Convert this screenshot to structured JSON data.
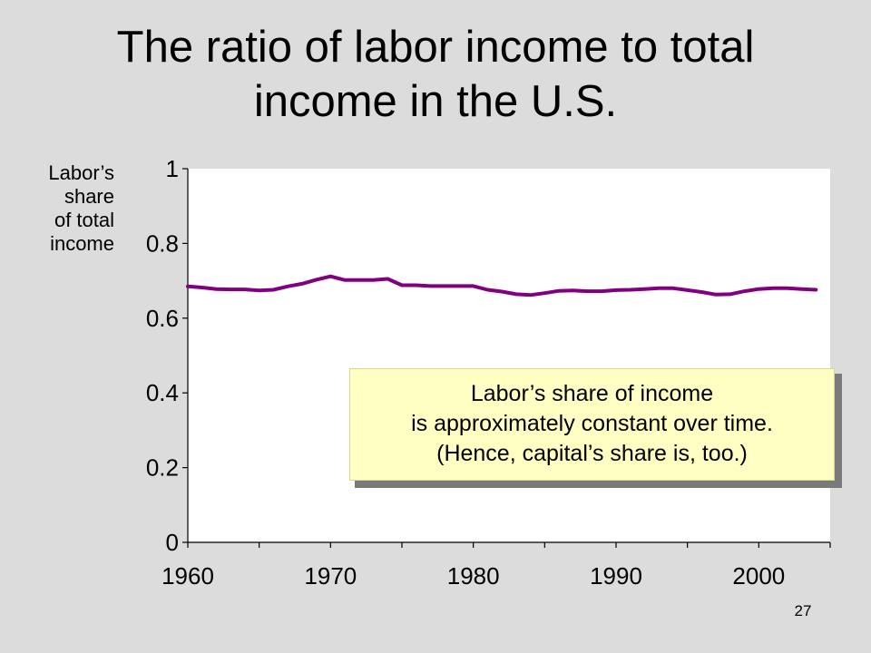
{
  "title_lines": [
    "The ratio of labor income to total",
    "income in the U.S."
  ],
  "ylabel_lines": [
    "Labor’s",
    "share",
    "of total",
    "income"
  ],
  "callout_lines": [
    "Labor’s share of income",
    "is approximately constant over time.",
    "(Hence, capital’s share is, too.)"
  ],
  "page_number": "27",
  "colors": {
    "line": "#800080",
    "plot_bg": "#ffffff",
    "callout_bg": "#ffffc4",
    "page_bg": "#dcdcdc"
  },
  "chart_data": {
    "type": "line",
    "title": "The ratio of labor income to total income in the U.S.",
    "ylabel": "Labor’s share of total income",
    "xlabel": "",
    "xlim": [
      1960,
      2005
    ],
    "ylim": [
      0,
      1
    ],
    "xticks": [
      1960,
      1970,
      1980,
      1990,
      2000
    ],
    "yticks": [
      0,
      0.2,
      0.4,
      0.6,
      0.8,
      1
    ],
    "ytick_labels": [
      "0",
      "0.2",
      "0.4",
      "0.6",
      "0.8",
      "1"
    ],
    "grid": false,
    "x": [
      1960,
      1961,
      1962,
      1963,
      1964,
      1965,
      1966,
      1967,
      1968,
      1969,
      1970,
      1971,
      1972,
      1973,
      1974,
      1975,
      1976,
      1977,
      1978,
      1979,
      1980,
      1981,
      1982,
      1983,
      1984,
      1985,
      1986,
      1987,
      1988,
      1989,
      1990,
      1991,
      1992,
      1993,
      1994,
      1995,
      1996,
      1997,
      1998,
      1999,
      2000,
      2001,
      2002,
      2003,
      2004
    ],
    "series": [
      {
        "values": [
          0.685,
          0.682,
          0.678,
          0.677,
          0.677,
          0.674,
          0.676,
          0.685,
          0.692,
          0.703,
          0.712,
          0.702,
          0.702,
          0.702,
          0.705,
          0.688,
          0.688,
          0.686,
          0.686,
          0.686,
          0.686,
          0.676,
          0.671,
          0.664,
          0.662,
          0.667,
          0.673,
          0.674,
          0.672,
          0.672,
          0.675,
          0.676,
          0.678,
          0.68,
          0.68,
          0.675,
          0.67,
          0.663,
          0.664,
          0.672,
          0.678,
          0.68,
          0.68,
          0.678,
          0.676
        ]
      }
    ]
  }
}
